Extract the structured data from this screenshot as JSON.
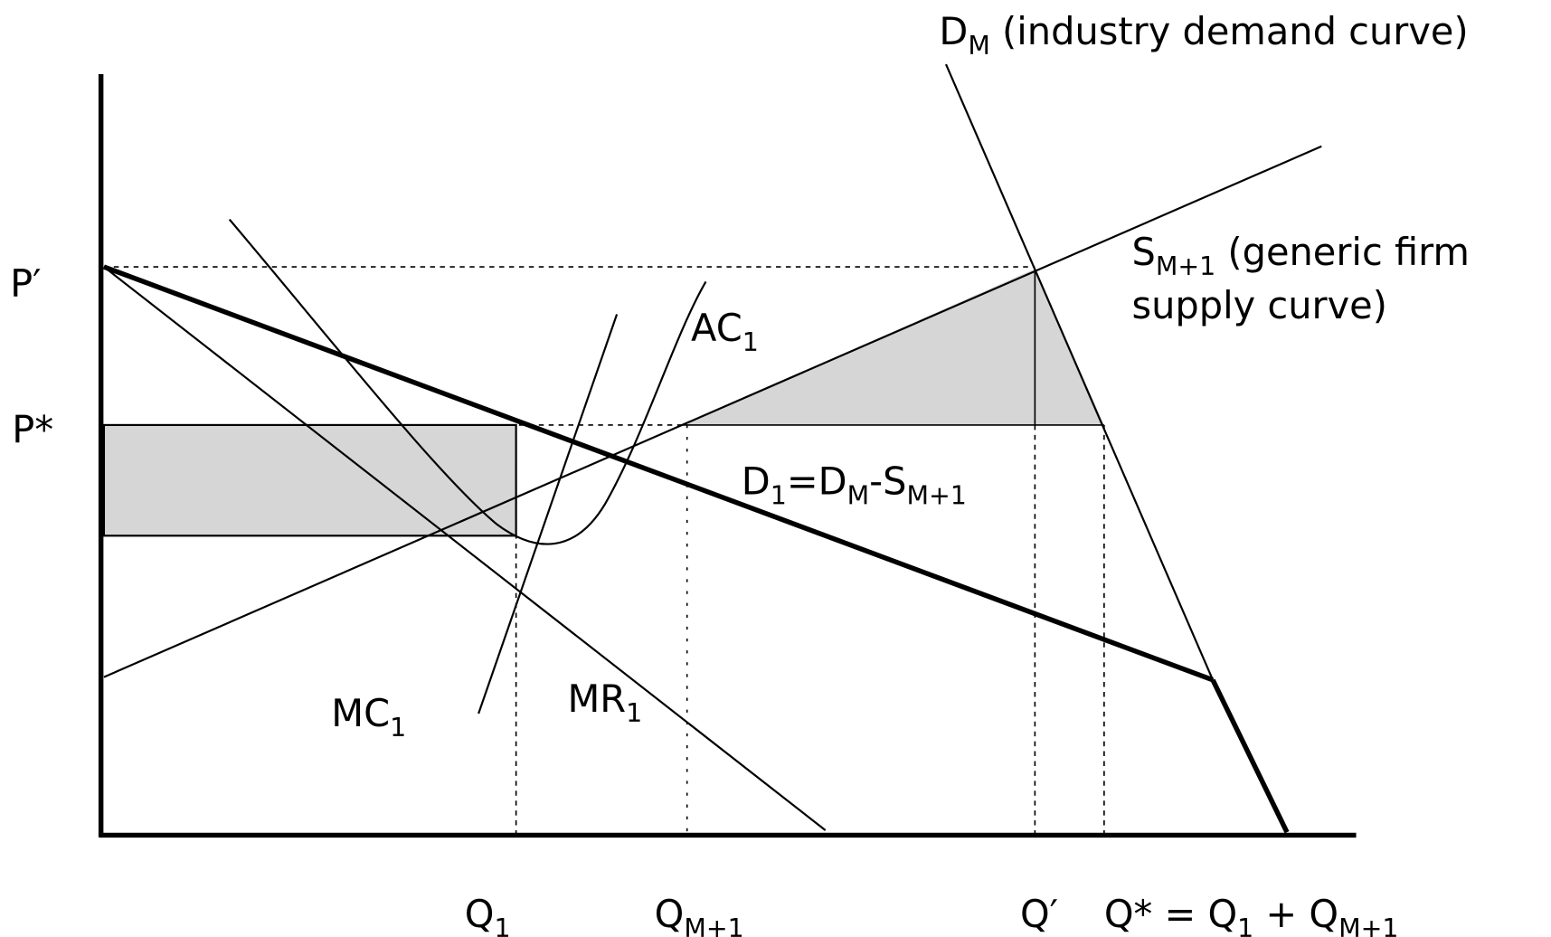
{
  "labels": [
    {
      "parts": [
        {
          "text": "P′"
        }
      ]
    },
    {
      "parts": [
        {
          "text": "P*"
        }
      ]
    },
    {
      "parts": [
        {
          "text": "Q"
        },
        {
          "text": "1",
          "sub": true
        }
      ]
    },
    {
      "parts": [
        {
          "text": "Q"
        },
        {
          "text": "M+1",
          "sub": true
        }
      ]
    },
    {
      "parts": [
        {
          "text": "Q′"
        }
      ]
    },
    {
      "parts": [
        {
          "text": "Q* = Q"
        },
        {
          "text": "1",
          "sub": true
        },
        {
          "text": " + Q"
        },
        {
          "text": "M+1",
          "sub": true
        }
      ]
    },
    {
      "parts": [
        {
          "text": "D"
        },
        {
          "text": "M",
          "sub": true
        },
        {
          "text": " (industry demand curve)"
        }
      ]
    },
    {
      "parts": [
        {
          "text": "S"
        },
        {
          "text": "M+1",
          "sub": true
        },
        {
          "text": " (generic firm"
        }
      ]
    },
    {
      "parts": [
        {
          "text": "supply curve)"
        }
      ]
    },
    {
      "parts": [
        {
          "text": "AC"
        },
        {
          "text": "1",
          "sub": true
        }
      ]
    },
    {
      "parts": [
        {
          "text": "D"
        },
        {
          "text": "1",
          "sub": true
        },
        {
          "text": "=D"
        },
        {
          "text": "M",
          "sub": true
        },
        {
          "text": "-S"
        },
        {
          "text": "M+1",
          "sub": true
        }
      ]
    },
    {
      "parts": [
        {
          "text": "MC"
        },
        {
          "text": "1",
          "sub": true
        }
      ]
    },
    {
      "parts": [
        {
          "text": "MR"
        },
        {
          "text": "1",
          "sub": true
        }
      ]
    }
  ]
}
